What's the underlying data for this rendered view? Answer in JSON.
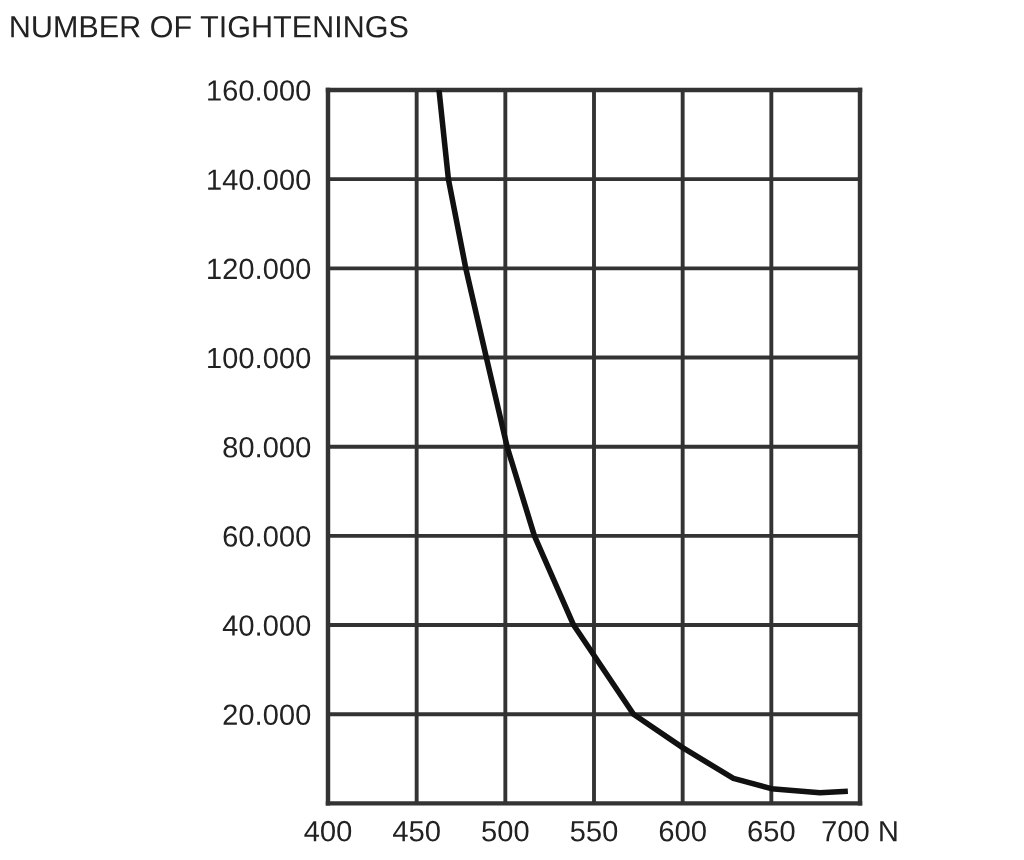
{
  "chart_data": {
    "type": "line",
    "ylabel": "NUMBER OF TIGHTENINGS",
    "series": [
      {
        "color": "#111111",
        "x": [
          462.6,
          467.9,
          477.7,
          489.3,
          501,
          516.4,
          538.5,
          572.3,
          600,
          628.6,
          650,
          677.4,
          691.6
        ],
        "values": [
          160000,
          140000,
          120000,
          100000,
          80000,
          60000,
          40000,
          20000,
          12500,
          5600,
          3300,
          2400,
          2700
        ]
      }
    ],
    "xlim": [
      400,
      700
    ],
    "ylim": [
      0,
      160000
    ],
    "xticks": [
      400,
      450,
      500,
      550,
      600,
      650,
      {
        "value": 700,
        "label": "700 N"
      }
    ],
    "yticks": [
      {
        "value": 20000,
        "label": "20.000"
      },
      {
        "value": 40000,
        "label": "40.000"
      },
      {
        "value": 60000,
        "label": "60.000"
      },
      {
        "value": 80000,
        "label": "80.000"
      },
      {
        "value": 100000,
        "label": "100.000"
      },
      {
        "value": 120000,
        "label": "120.000"
      },
      {
        "value": 140000,
        "label": "140.000"
      },
      {
        "value": 160000,
        "label": "160.000"
      }
    ],
    "grid": true,
    "marker": "none",
    "line_style": "solid"
  }
}
